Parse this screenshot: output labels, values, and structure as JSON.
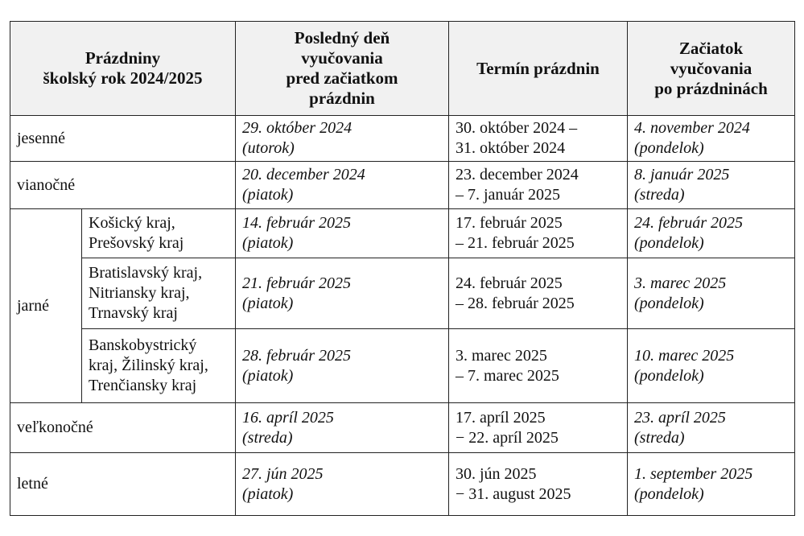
{
  "header": {
    "col1": [
      "Prázdniny",
      "školský rok 2024/2025"
    ],
    "col2": [
      "Posledný deň",
      "vyučovania",
      "pred začiatkom",
      "prázdnin"
    ],
    "col3": [
      "Termín prázdnin"
    ],
    "col4": [
      "Začiatok",
      "vyučovania",
      "po prázdninách"
    ]
  },
  "rows": {
    "jesenne": {
      "name": "jesenné",
      "last_day": [
        "29. október 2024",
        "(utorok)"
      ],
      "term": [
        "30. október 2024 –",
        "31. október 2024"
      ],
      "start": [
        "4. november 2024",
        "(pondelok)"
      ]
    },
    "vianocne": {
      "name": "vianočné",
      "last_day": [
        "20. december 2024",
        "(piatok)"
      ],
      "term": [
        "23. december 2024",
        "– 7. január 2025"
      ],
      "start": [
        "8. január 2025",
        "(streda)"
      ]
    },
    "jarne": {
      "name": "jarné",
      "regions": [
        {
          "region": [
            "Košický kraj,",
            "Prešovský kraj"
          ],
          "last_day": [
            "14. február 2025",
            "(piatok)"
          ],
          "term": [
            "17. február 2025",
            "– 21. február 2025"
          ],
          "start": [
            "24. február 2025",
            "(pondelok)"
          ]
        },
        {
          "region": [
            "Bratislavský kraj,",
            "Nitriansky kraj,",
            "Trnavský kraj"
          ],
          "last_day": [
            "21. február 2025",
            "(piatok)"
          ],
          "term": [
            "24. február 2025",
            "– 28. február 2025"
          ],
          "start": [
            "3. marec 2025",
            "(pondelok)"
          ]
        },
        {
          "region": [
            "Banskobystrický",
            "kraj, Žilinský kraj,",
            "Trenčiansky kraj"
          ],
          "last_day": [
            "28. február 2025",
            "(piatok)"
          ],
          "term": [
            "3. marec 2025",
            "– 7. marec 2025"
          ],
          "start": [
            "10. marec 2025",
            "(pondelok)"
          ]
        }
      ]
    },
    "velkonocne": {
      "name": "veľkonočné",
      "last_day": [
        "16. apríl 2025",
        "(streda)"
      ],
      "term": [
        "17. apríl 2025",
        "− 22. apríl 2025"
      ],
      "start": [
        "23. apríl 2025",
        "(streda)"
      ]
    },
    "letne": {
      "name": "letné",
      "last_day": [
        "27. jún 2025",
        "(piatok)"
      ],
      "term": [
        "30. jún 2025",
        "− 31. august 2025"
      ],
      "start": [
        "1. september 2025",
        "(pondelok)"
      ]
    }
  }
}
